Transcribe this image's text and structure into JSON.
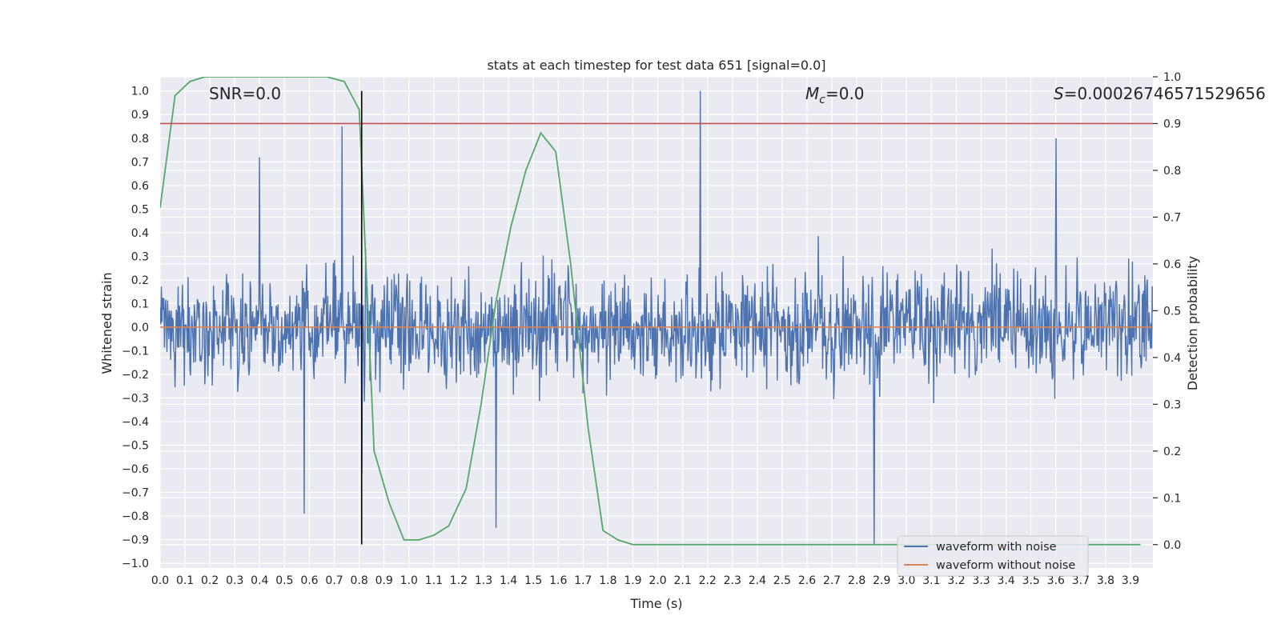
{
  "chart_data": {
    "type": "line",
    "title": "stats at each timestep for test data 651 [signal=0.0]",
    "xlabel": "Time (s)",
    "ylabel": "Whitened strain",
    "y2label": "Detection probability",
    "xlim": [
      0.0,
      3.99
    ],
    "ylim": [
      -1.02,
      1.06
    ],
    "y2lim": [
      -0.05,
      1.0
    ],
    "grid": true,
    "x_ticks": [
      0.0,
      0.1,
      0.2,
      0.3,
      0.4,
      0.5,
      0.6,
      0.7,
      0.8,
      0.9,
      1.0,
      1.1,
      1.2,
      1.3,
      1.4,
      1.5,
      1.6,
      1.7,
      1.8,
      1.9,
      2.0,
      2.1,
      2.2,
      2.3,
      2.4,
      2.5,
      2.6,
      2.7,
      2.8,
      2.9,
      3.0,
      3.1,
      3.2,
      3.3,
      3.4,
      3.5,
      3.6,
      3.7,
      3.8,
      3.9
    ],
    "x_tick_labels": [
      "0.0",
      "0.1",
      "0.2",
      "0.3",
      "0.4",
      "0.5",
      "0.6",
      "0.7",
      "0.8",
      "0.9",
      "1.0",
      "1.1",
      "1.2",
      "1.3",
      "1.4",
      "1.5",
      "1.6",
      "1.7",
      "1.8",
      "1.9",
      "2.0",
      "2.1",
      "2.2",
      "2.3",
      "2.4",
      "2.5",
      "2.6",
      "2.7",
      "2.8",
      "2.9",
      "3.0",
      "3.1",
      "3.2",
      "3.3",
      "3.4",
      "3.5",
      "3.6",
      "3.7",
      "3.8",
      "3.9"
    ],
    "y_ticks": [
      1.0,
      0.9,
      0.8,
      0.7,
      0.6,
      0.5,
      0.4,
      0.3,
      0.2,
      0.1,
      0.0,
      -0.1,
      -0.2,
      -0.3,
      -0.4,
      -0.5,
      -0.6,
      -0.7,
      -0.8,
      -0.9,
      -1.0
    ],
    "y_tick_labels": [
      "1.0",
      "0.9",
      "0.8",
      "0.7",
      "0.6",
      "0.5",
      "0.4",
      "0.3",
      "0.2",
      "0.1",
      "0.0",
      "−0.1",
      "−0.2",
      "−0.3",
      "−0.4",
      "−0.5",
      "−0.6",
      "−0.7",
      "−0.8",
      "−0.9",
      "−1.0"
    ],
    "y2_ticks": [
      1.0,
      0.9,
      0.8,
      0.7,
      0.6,
      0.5,
      0.4,
      0.3,
      0.2,
      0.1,
      0.0
    ],
    "y2_tick_labels": [
      "1.0",
      "0.9",
      "0.8",
      "0.7",
      "0.6",
      "0.5",
      "0.4",
      "0.3",
      "0.2",
      "0.1",
      "0.0"
    ],
    "annotations": {
      "snr": "SNR=0.0",
      "mc_symbol": "M",
      "mc_sub": "c",
      "mc_value": "=0.0",
      "s_symbol": "S",
      "s_value": "=0.00026746571529656"
    },
    "series": [
      {
        "name": "waveform with noise",
        "color": "#4c72b0",
        "axis": "left",
        "kind": "noise",
        "n_samples": 1600,
        "amplitude_range": [
          -0.92,
          1.0
        ],
        "notable_peaks": [
          {
            "x": 0.73,
            "y": 0.85
          },
          {
            "x": 0.81,
            "y": 0.86
          },
          {
            "x": 0.81,
            "y": -0.62
          },
          {
            "x": 0.4,
            "y": 0.72
          },
          {
            "x": 2.17,
            "y": 1.0
          },
          {
            "x": 2.87,
            "y": -0.92
          },
          {
            "x": 3.6,
            "y": 0.8
          },
          {
            "x": 1.35,
            "y": -0.85
          },
          {
            "x": 0.58,
            "y": -0.79
          }
        ]
      },
      {
        "name": "waveform without noise",
        "color": "#dd8452",
        "axis": "left",
        "x": [
          0.0,
          3.99
        ],
        "y": [
          0.0,
          0.0
        ]
      },
      {
        "name": "detection probability",
        "color": "#55a868",
        "axis": "right",
        "x": [
          0.0,
          0.06,
          0.12,
          0.18,
          0.25,
          0.31,
          0.37,
          0.43,
          0.49,
          0.55,
          0.61,
          0.67,
          0.74,
          0.8,
          0.86,
          0.92,
          0.98,
          1.04,
          1.1,
          1.16,
          1.23,
          1.29,
          1.35,
          1.41,
          1.47,
          1.53,
          1.59,
          1.65,
          1.72,
          1.78,
          1.84,
          1.9,
          1.96,
          2.02,
          2.1,
          2.5,
          3.0,
          3.5,
          3.94
        ],
        "y": [
          0.72,
          0.96,
          0.99,
          1.0,
          1.0,
          1.0,
          1.0,
          1.0,
          1.0,
          1.0,
          1.0,
          1.0,
          0.99,
          0.93,
          0.2,
          0.09,
          0.01,
          0.01,
          0.02,
          0.04,
          0.12,
          0.3,
          0.52,
          0.68,
          0.8,
          0.88,
          0.84,
          0.6,
          0.25,
          0.03,
          0.01,
          0.0,
          0.0,
          0.0,
          0.0,
          0.0,
          0.0,
          0.0,
          0.0
        ]
      }
    ],
    "reference_lines": [
      {
        "name": "threshold",
        "color": "#c44e52",
        "axis": "right",
        "orientation": "horizontal",
        "value": 0.9
      },
      {
        "name": "event marker",
        "color": "#000000",
        "axis": "left",
        "orientation": "vertical",
        "x": 0.81,
        "y_range": [
          -0.92,
          1.0
        ]
      }
    ],
    "legend": {
      "position": "lower right",
      "entries": [
        {
          "label": "waveform with noise",
          "color": "#4c72b0"
        },
        {
          "label": "waveform without noise",
          "color": "#dd8452"
        }
      ]
    }
  }
}
